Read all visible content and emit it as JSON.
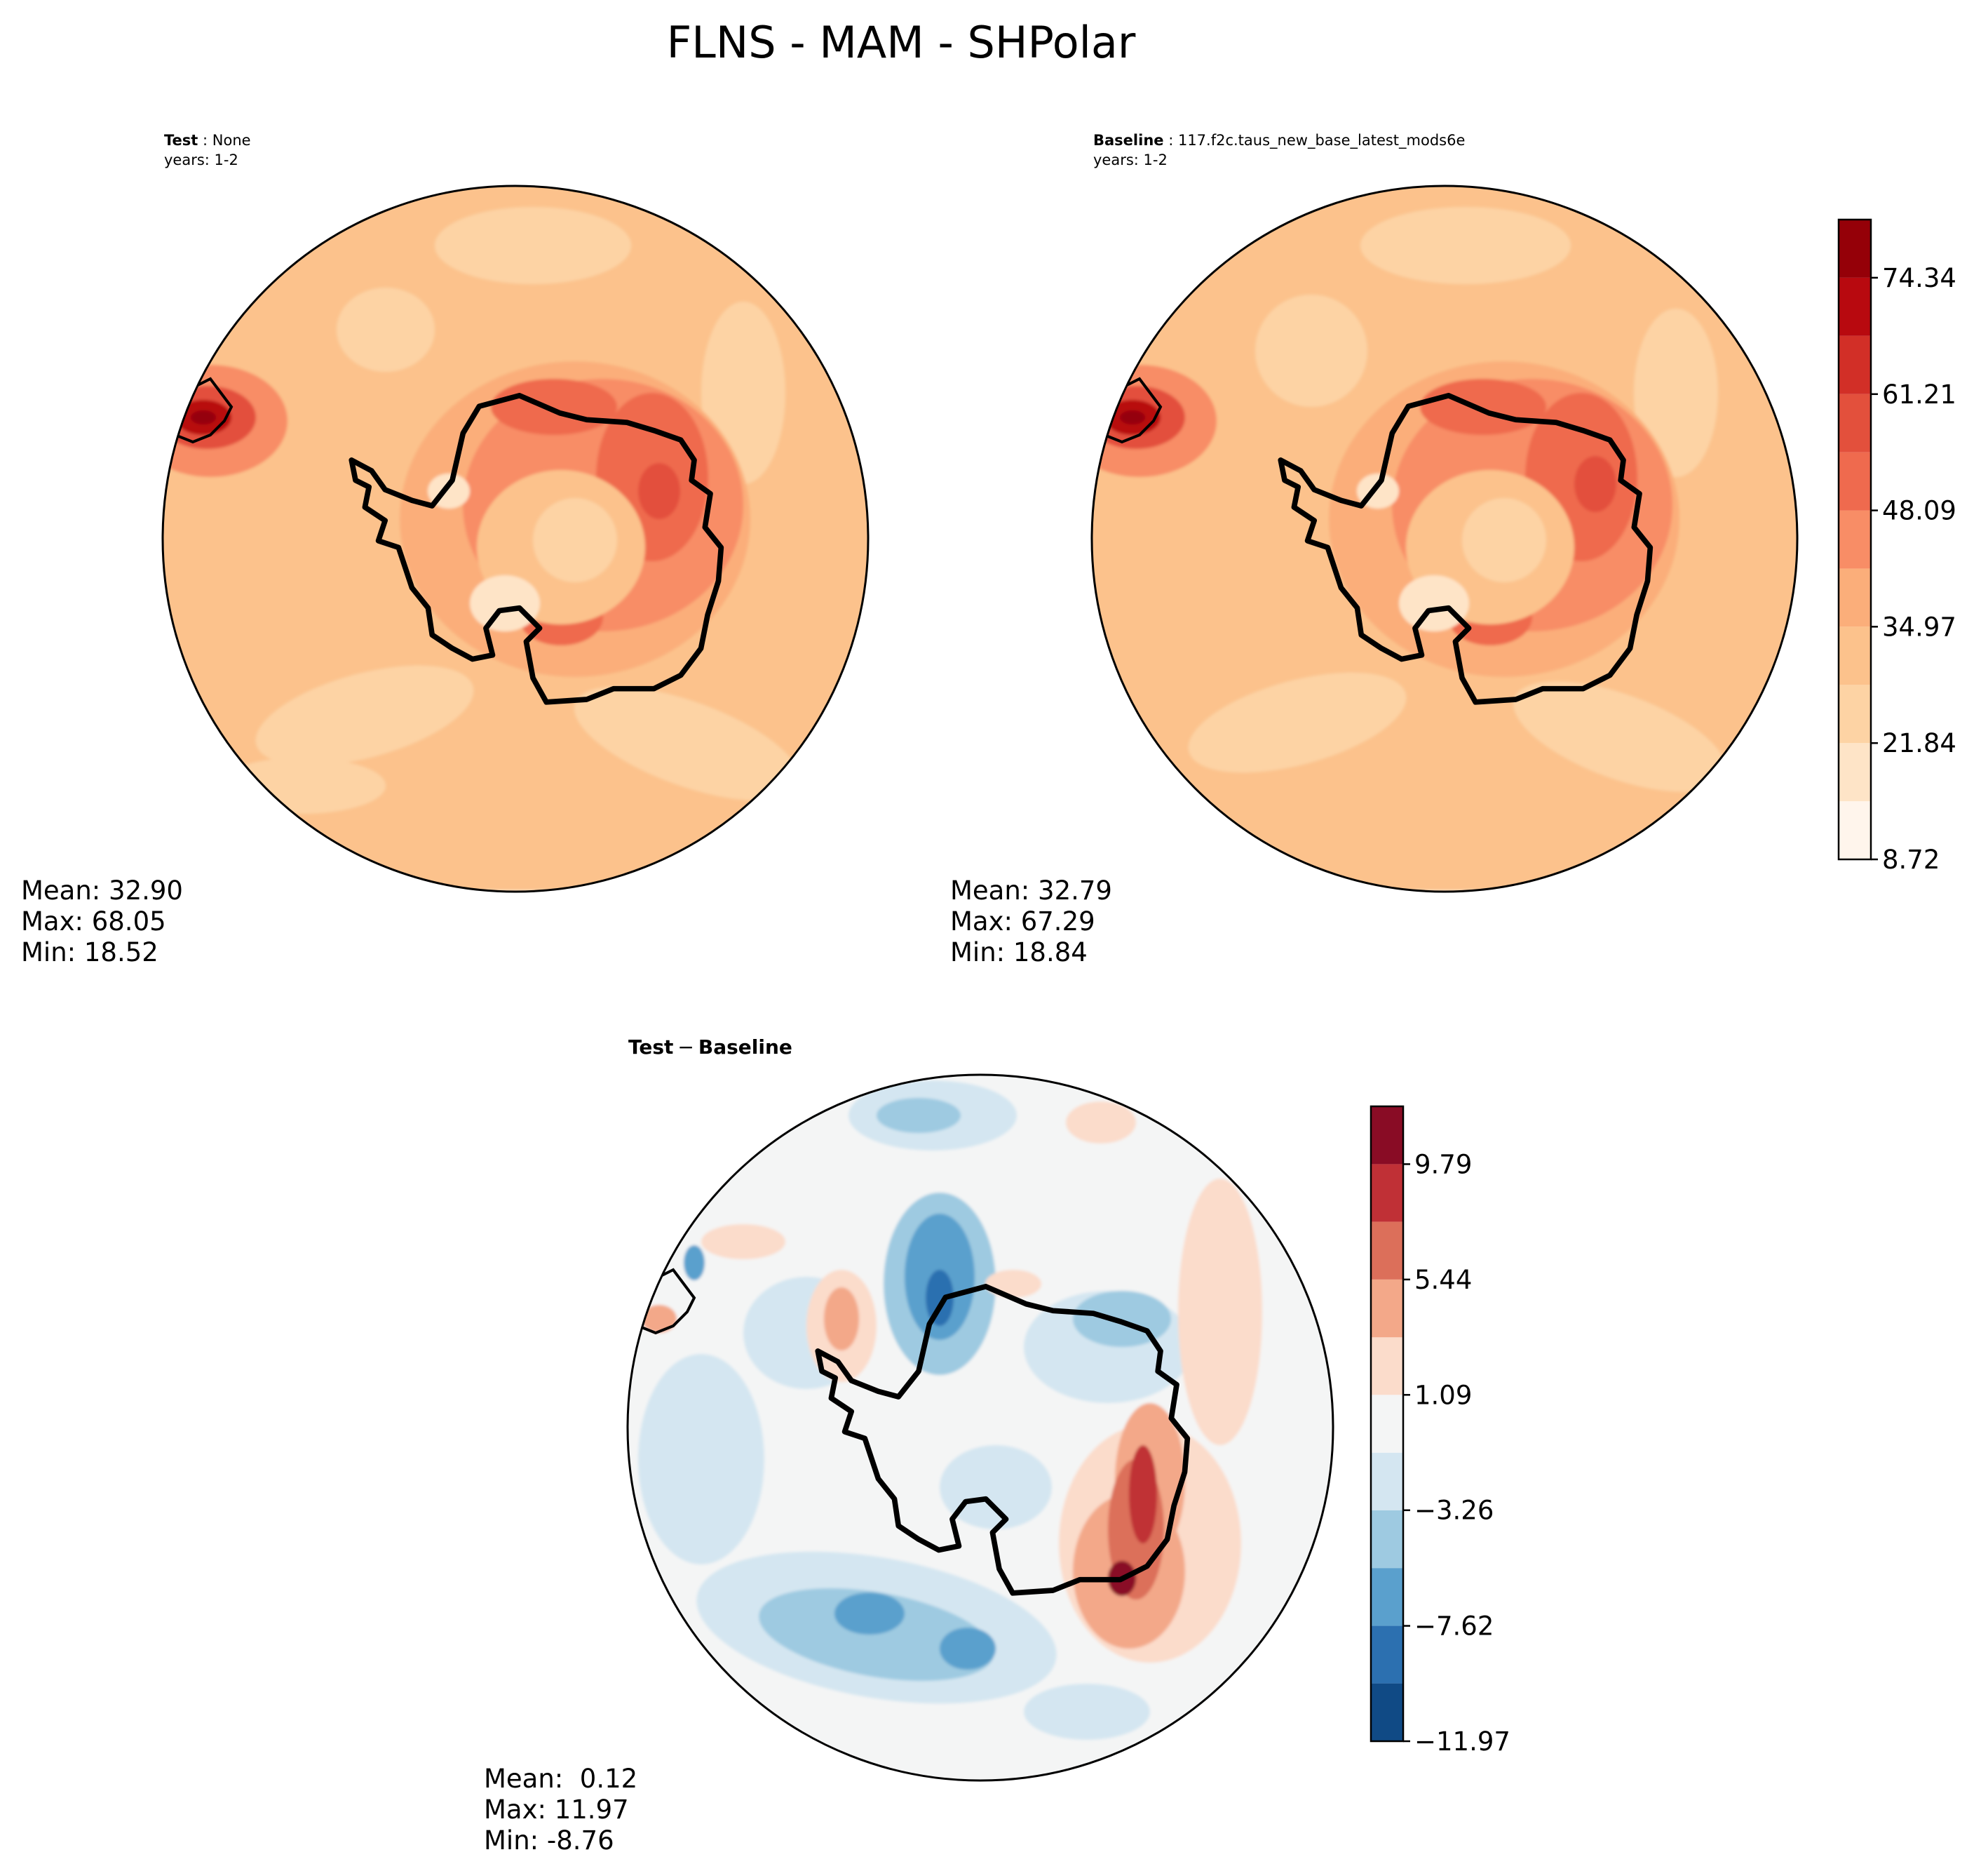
{
  "figure": {
    "title": "FLNS - MAM - SHPolar"
  },
  "chart_data": [
    {
      "type": "heatmap",
      "projection": "south-polar-stereographic",
      "label": "Test",
      "case": "None",
      "years": "years: 1-2",
      "stats": {
        "mean": "Mean: 32.90",
        "max": "Max: 68.05",
        "min": "Min: 18.52"
      },
      "colormap": "Reds (sequential)",
      "levels": [
        8.72,
        15.28,
        21.84,
        28.4,
        34.97,
        41.53,
        48.09,
        54.65,
        61.21,
        67.78,
        74.34,
        80.9
      ],
      "field_summary": {
        "open_ocean": "21.84-34.97",
        "antarctic_coast": "41.53-61.21",
        "peninsula_max": 68.05,
        "ice_interior": "21.84-41.53"
      }
    },
    {
      "type": "heatmap",
      "projection": "south-polar-stereographic",
      "label": "Baseline",
      "case": "117.f2c.taus_new_base_latest_mods6e",
      "years": "years: 1-2",
      "stats": {
        "mean": "Mean: 32.79",
        "max": "Max: 67.29",
        "min": "Min: 18.84"
      },
      "colormap": "Reds (sequential)",
      "levels": [
        8.72,
        15.28,
        21.84,
        28.4,
        34.97,
        41.53,
        48.09,
        54.65,
        61.21,
        67.78,
        74.34,
        80.9
      ],
      "colorbar": {
        "ticks": [
          "8.72",
          "21.84",
          "34.97",
          "48.09",
          "61.21",
          "74.34"
        ]
      }
    },
    {
      "type": "heatmap",
      "projection": "south-polar-stereographic",
      "label": "Test",
      "minus": "−",
      "label2": "Baseline",
      "stats": {
        "mean": "Mean:  0.12",
        "max": "Max: 11.97",
        "min": "Min: -8.76"
      },
      "colormap": "RdBu_r (diverging)",
      "levels": [
        -11.97,
        -9.79,
        -7.62,
        -5.44,
        -3.26,
        -1.09,
        1.09,
        3.26,
        5.44,
        7.62,
        9.79,
        11.97
      ],
      "colorbar": {
        "ticks": [
          "−11.97",
          "−7.62",
          "−3.26",
          "1.09",
          "5.44",
          "9.79"
        ]
      }
    }
  ],
  "colors": {
    "seq": [
      "#fff5ec",
      "#fee4c7",
      "#fdd3a4",
      "#fcc28c",
      "#fbae7a",
      "#f88d66",
      "#ef6a4e",
      "#e3503c",
      "#d22f27",
      "#b8090f",
      "#950008"
    ],
    "div": [
      "#104a85",
      "#2c70b0",
      "#5aa0cd",
      "#9ecae1",
      "#d4e6f1",
      "#f4f5f5",
      "#fbdccb",
      "#f3a889",
      "#dc6f5a",
      "#c03036",
      "#890c25"
    ]
  }
}
